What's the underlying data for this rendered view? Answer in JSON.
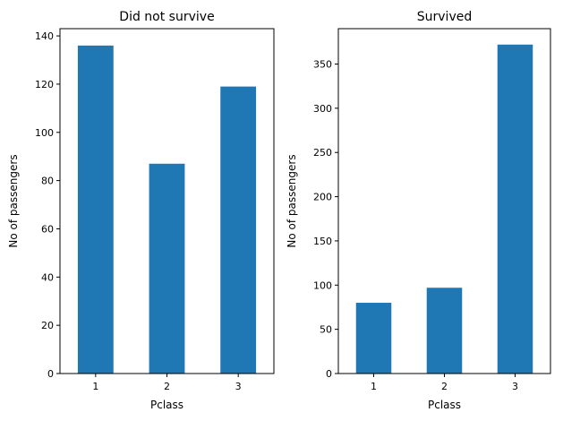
{
  "chart_data": [
    {
      "type": "bar",
      "title": "Did not survive",
      "xlabel": "Pclass",
      "ylabel": "No of passengers",
      "categories": [
        "1",
        "2",
        "3"
      ],
      "values": [
        136,
        87,
        119
      ],
      "ylim": [
        0,
        143
      ],
      "yticks": [
        0,
        20,
        40,
        60,
        80,
        100,
        120,
        140
      ],
      "color": "#1f77b4",
      "grid": false
    },
    {
      "type": "bar",
      "title": "Survived",
      "xlabel": "Pclass",
      "ylabel": "No of passengers",
      "categories": [
        "1",
        "2",
        "3"
      ],
      "values": [
        80,
        97,
        372
      ],
      "ylim": [
        0,
        390
      ],
      "yticks": [
        0,
        50,
        100,
        150,
        200,
        250,
        300,
        350
      ],
      "color": "#1f77b4",
      "grid": false
    }
  ]
}
